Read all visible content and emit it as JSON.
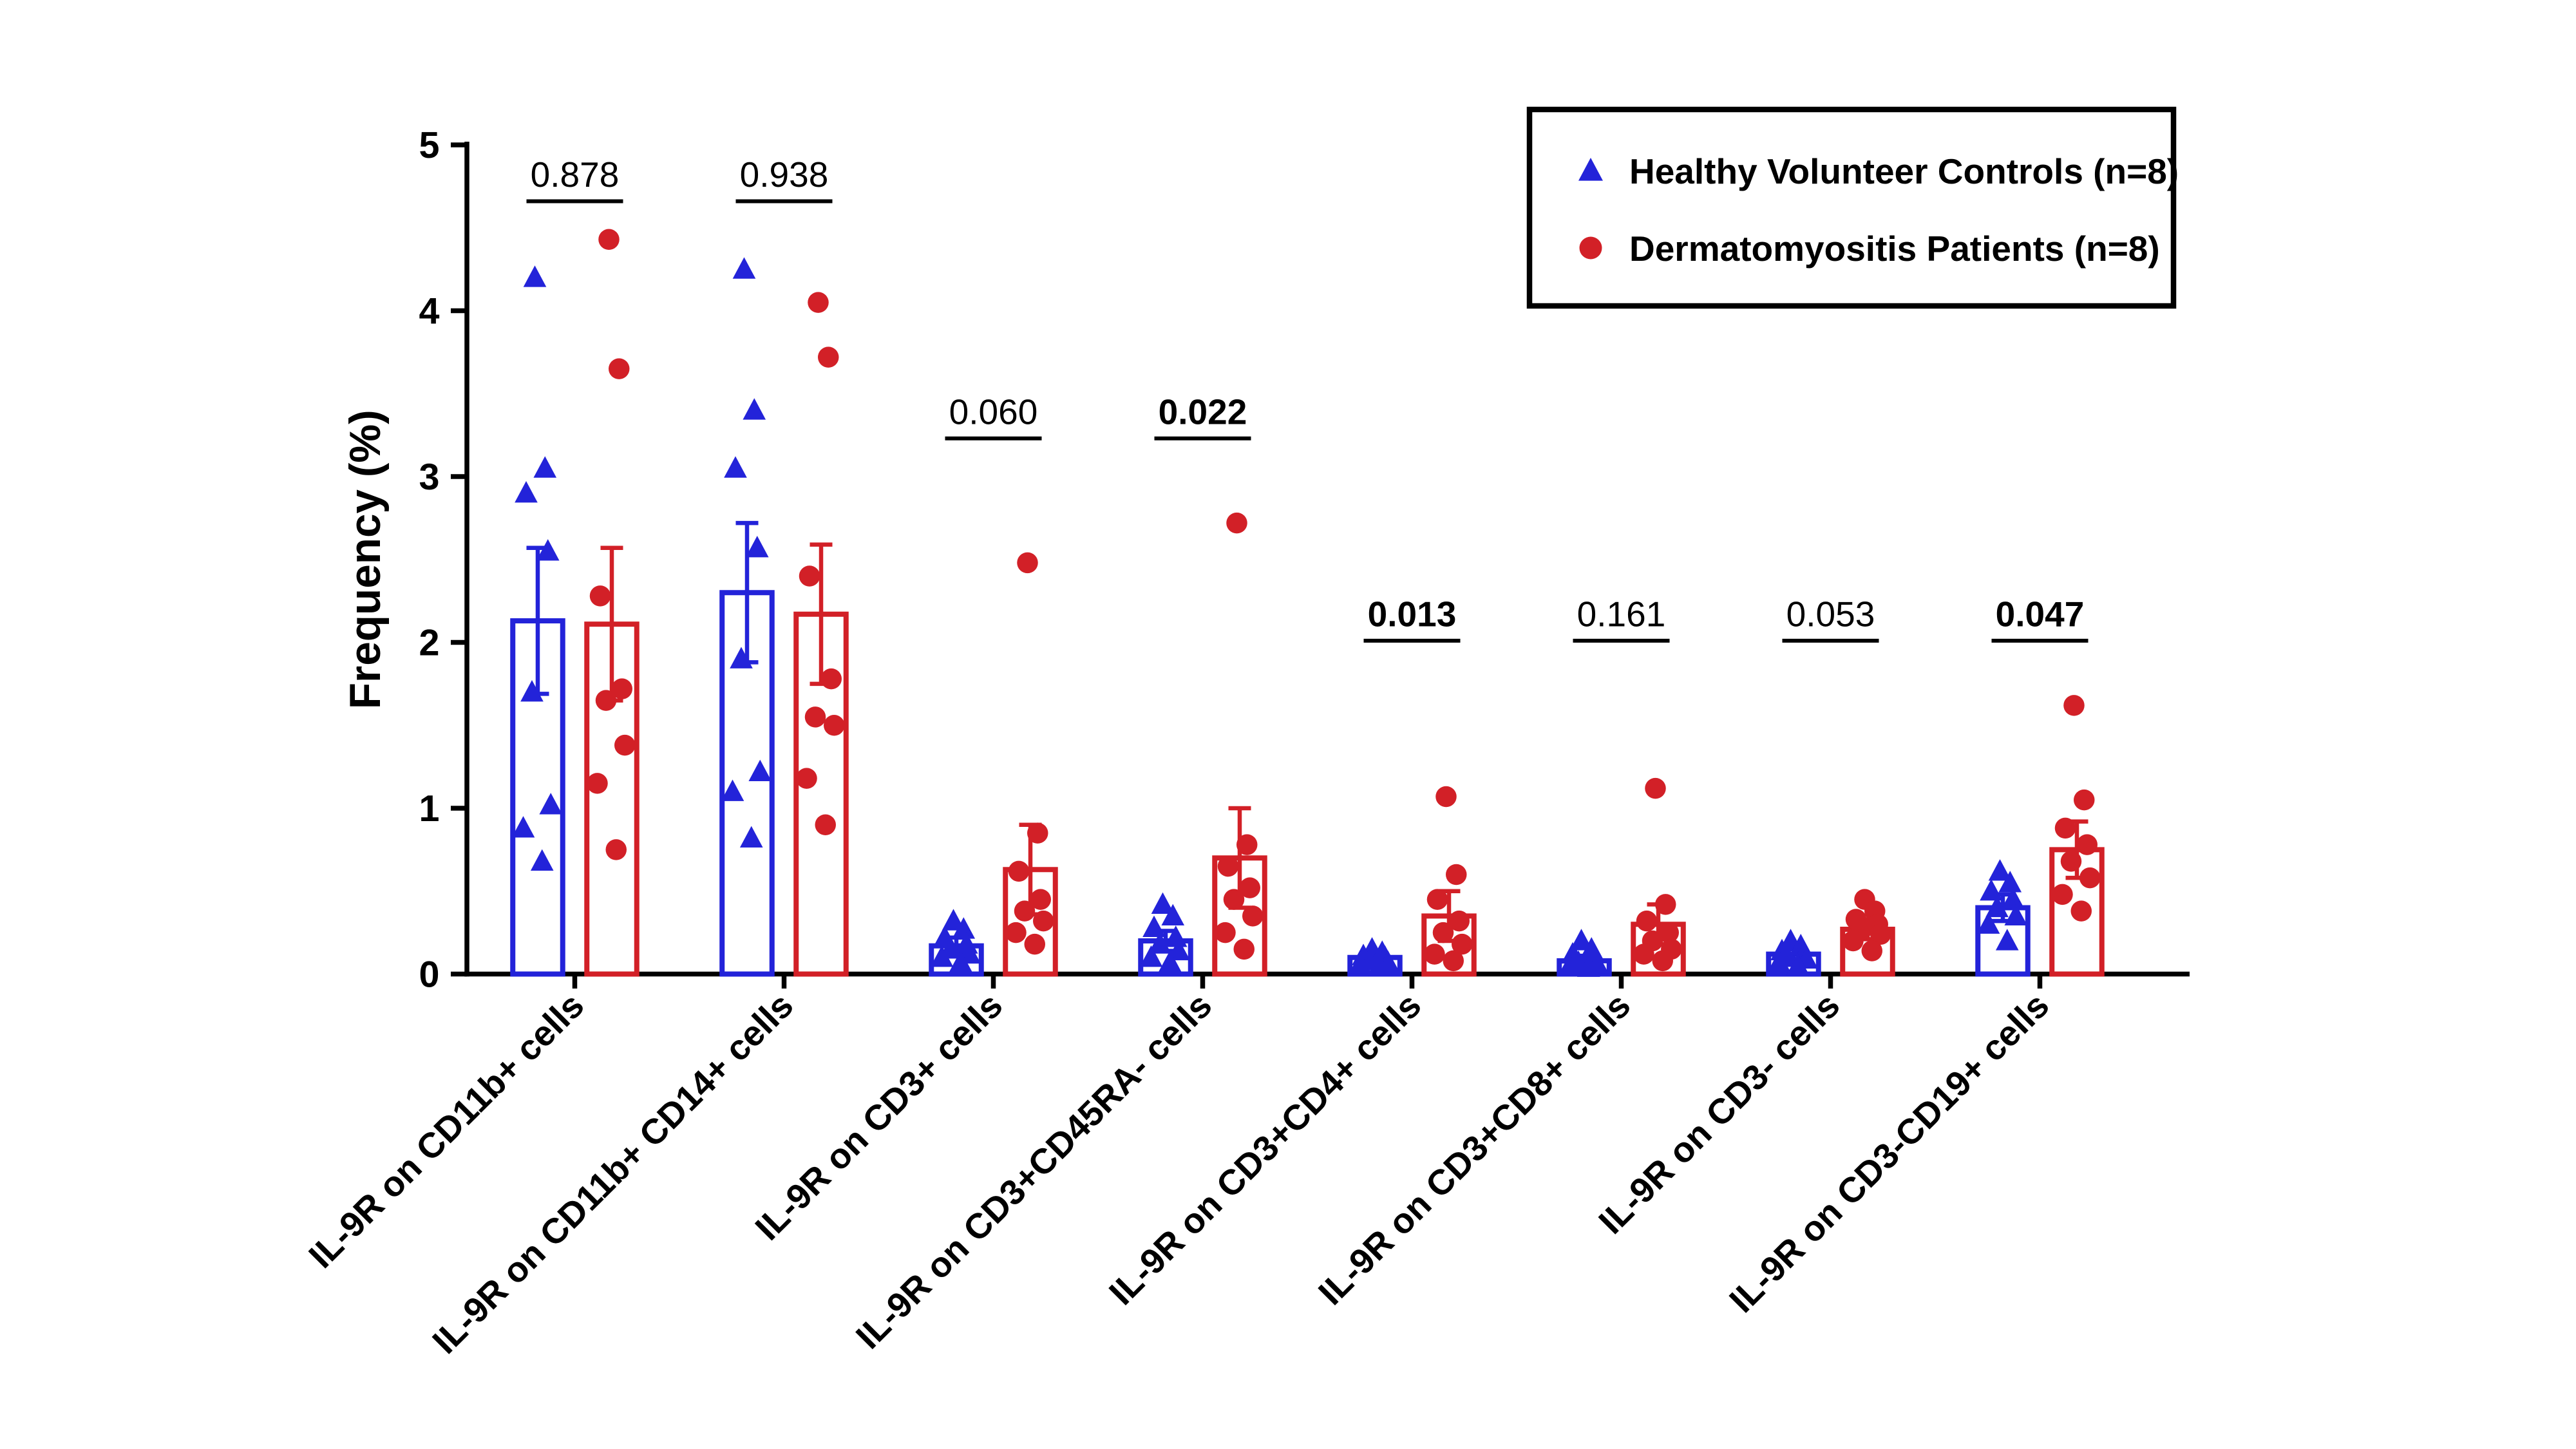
{
  "figure": {
    "background": "#ffffff",
    "axis_color": "#000000"
  },
  "chart_data": {
    "type": "bar",
    "subtype": "grouped-open-bars-with-scatter-overlay-and-sem-error-bars",
    "title": "",
    "xlabel": "",
    "ylabel": "Frequency (%)",
    "ylim": [
      0,
      5
    ],
    "yticks": [
      0,
      1,
      2,
      3,
      4,
      5
    ],
    "grid": false,
    "legend_position": "top-right",
    "categories": [
      "IL-9R on CD11b+ cells",
      "IL-9R on CD11b+ CD14+ cells",
      "IL-9R on CD3+ cells",
      "IL-9R on CD3+CD45RA- cells",
      "IL-9R on CD3+CD4+ cells",
      "IL-9R on CD3+CD8+ cells",
      "IL-9R on CD3- cells",
      "IL-9R on CD3-CD19+ cells"
    ],
    "comparisons": [
      {
        "p_text": "0.878",
        "significant": false
      },
      {
        "p_text": "0.938",
        "significant": false
      },
      {
        "p_text": "0.060",
        "significant": false
      },
      {
        "p_text": "0.022",
        "significant": true
      },
      {
        "p_text": "0.013",
        "significant": true
      },
      {
        "p_text": "0.161",
        "significant": false
      },
      {
        "p_text": "0.053",
        "significant": false
      },
      {
        "p_text": "0.047",
        "significant": true
      }
    ],
    "series": [
      {
        "name": "Healthy Volunteer Controls (n=8)",
        "marker": "triangle",
        "color": "#2323d9",
        "means": [
          2.13,
          2.3,
          0.17,
          0.2,
          0.1,
          0.08,
          0.12,
          0.4
        ],
        "sem": [
          0.44,
          0.42,
          0.05,
          0.06,
          0.03,
          0.03,
          0.03,
          0.08
        ],
        "points": [
          [
            4.2,
            3.05,
            2.9,
            2.55,
            1.7,
            1.02,
            0.88,
            0.68
          ],
          [
            4.25,
            3.4,
            3.05,
            2.57,
            1.9,
            1.22,
            1.1,
            0.82
          ],
          [
            0.32,
            0.27,
            0.22,
            0.18,
            0.15,
            0.12,
            0.1,
            0.07
          ],
          [
            0.42,
            0.35,
            0.28,
            0.22,
            0.18,
            0.14,
            0.1,
            0.07
          ],
          [
            0.15,
            0.13,
            0.11,
            0.1,
            0.08,
            0.07,
            0.06,
            0.05
          ],
          [
            0.2,
            0.15,
            0.12,
            0.09,
            0.07,
            0.06,
            0.05,
            0.04
          ],
          [
            0.2,
            0.17,
            0.14,
            0.12,
            0.1,
            0.09,
            0.07,
            0.05
          ],
          [
            0.62,
            0.55,
            0.5,
            0.45,
            0.4,
            0.35,
            0.3,
            0.2
          ]
        ]
      },
      {
        "name": "Dermatomyositis Patients (n=8)",
        "marker": "circle",
        "color": "#d22027",
        "means": [
          2.11,
          2.17,
          0.63,
          0.7,
          0.35,
          0.3,
          0.27,
          0.75
        ],
        "sem": [
          0.46,
          0.42,
          0.27,
          0.3,
          0.15,
          0.12,
          0.06,
          0.17
        ],
        "points": [
          [
            4.43,
            3.65,
            2.28,
            1.72,
            1.65,
            1.38,
            1.15,
            0.75
          ],
          [
            4.05,
            3.72,
            2.4,
            1.78,
            1.55,
            1.5,
            1.18,
            0.9
          ],
          [
            2.48,
            0.85,
            0.62,
            0.45,
            0.38,
            0.32,
            0.25,
            0.18
          ],
          [
            2.72,
            0.78,
            0.65,
            0.52,
            0.45,
            0.35,
            0.25,
            0.15
          ],
          [
            1.07,
            0.6,
            0.45,
            0.32,
            0.25,
            0.18,
            0.12,
            0.08
          ],
          [
            1.12,
            0.42,
            0.32,
            0.25,
            0.2,
            0.15,
            0.12,
            0.08
          ],
          [
            0.45,
            0.38,
            0.33,
            0.3,
            0.27,
            0.24,
            0.2,
            0.14
          ],
          [
            1.62,
            1.05,
            0.88,
            0.78,
            0.68,
            0.58,
            0.48,
            0.38
          ]
        ]
      }
    ]
  }
}
